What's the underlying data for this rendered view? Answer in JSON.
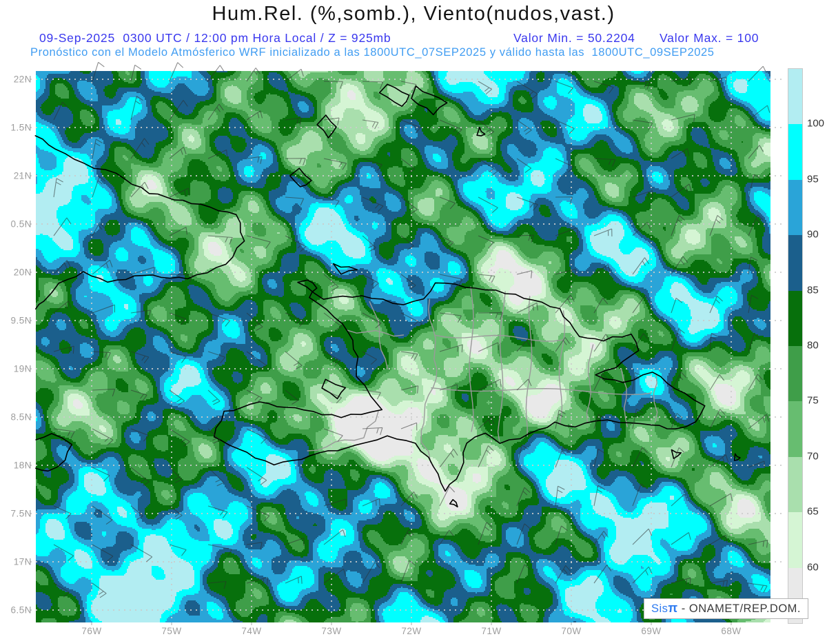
{
  "header": {
    "title": "Hum.Rel. (%,somb.), Viento(nudos,vast.)",
    "datetime_line": "09-Sep-2025  0300 UTC / 12:00 pm Hora Local / Z = 925mb",
    "valor_min": "Valor Min. = 50.2204",
    "valor_max": "Valor Max. = 100",
    "model_line": "Pronóstico con el Modelo Atmósferico WRF inicializado a las 1800UTC_07SEP2025 y válido hasta las  1800UTC_09SEP2025",
    "colors": {
      "title": "#141414",
      "datetime_line": "#3a38ee",
      "model_line": "#419df2"
    }
  },
  "axes": {
    "label_color": "#9e9e9e",
    "lat_labels": [
      {
        "text": "22N",
        "lat": 22.0
      },
      {
        "text": "1.5N",
        "lat": 21.5
      },
      {
        "text": "21N",
        "lat": 21.0
      },
      {
        "text": "0.5N",
        "lat": 20.5
      },
      {
        "text": "20N",
        "lat": 20.0
      },
      {
        "text": "9.5N",
        "lat": 19.5
      },
      {
        "text": "19N",
        "lat": 19.0
      },
      {
        "text": "8.5N",
        "lat": 18.5
      },
      {
        "text": "18N",
        "lat": 18.0
      },
      {
        "text": "7.5N",
        "lat": 17.5
      },
      {
        "text": "17N",
        "lat": 17.0
      },
      {
        "text": "6.5N",
        "lat": 16.5
      }
    ],
    "lon_labels": [
      {
        "text": "76W",
        "lon": 76
      },
      {
        "text": "75W",
        "lon": 75
      },
      {
        "text": "74W",
        "lon": 74
      },
      {
        "text": "73W",
        "lon": 73
      },
      {
        "text": "72W",
        "lon": 72
      },
      {
        "text": "71W",
        "lon": 71
      },
      {
        "text": "70W",
        "lon": 70
      },
      {
        "text": "69W",
        "lon": 69
      },
      {
        "text": "68W",
        "lon": 68
      }
    ]
  },
  "colorbar": {
    "label_color": "#333333",
    "segments_top_to_bottom": [
      {
        "color": "#b2edf2",
        "boundary_label_below": "100"
      },
      {
        "color": "#00ffff",
        "boundary_label_below": "95"
      },
      {
        "color": "#2aa4d8",
        "boundary_label_below": "90"
      },
      {
        "color": "#1b5f8c",
        "boundary_label_below": "85"
      },
      {
        "color": "#07700c",
        "boundary_label_below": "80"
      },
      {
        "color": "#3f9e49",
        "boundary_label_below": "75"
      },
      {
        "color": "#67bd70",
        "boundary_label_below": "70"
      },
      {
        "color": "#a9dfad",
        "boundary_label_below": "65"
      },
      {
        "color": "#d5f5d4",
        "boundary_label_below": "60"
      },
      {
        "color": "#e9e9e9",
        "boundary_label_below": ""
      }
    ]
  },
  "map": {
    "extent": {
      "lon_west": 76.7,
      "lon_east": 67.5,
      "lat_south": 16.37,
      "lat_north": 22.09
    },
    "levels": [
      60,
      65,
      70,
      75,
      80,
      85,
      90,
      95,
      100
    ],
    "grid": {
      "lat_step": 0.5,
      "lon_step": 1.0,
      "color": "#cccccc"
    },
    "coastline_color": "#000000",
    "border_color": "#9a9a9a",
    "barb_color": "#2e2e2e",
    "coastlines": [
      {
        "name": "hispaniola",
        "closed": true,
        "pts": [
          [
            19.9,
            73.42
          ],
          [
            19.73,
            73.1
          ],
          [
            19.76,
            72.62
          ],
          [
            19.66,
            72.1
          ],
          [
            19.72,
            71.84
          ],
          [
            19.9,
            71.7
          ],
          [
            19.84,
            71.2
          ],
          [
            19.77,
            70.7
          ],
          [
            19.62,
            70.15
          ],
          [
            19.33,
            69.9
          ],
          [
            19.3,
            69.6
          ],
          [
            19.36,
            69.25
          ],
          [
            19.19,
            69.16
          ],
          [
            19.02,
            69.45
          ],
          [
            18.93,
            69.7
          ],
          [
            18.85,
            69.35
          ],
          [
            18.97,
            68.98
          ],
          [
            18.8,
            68.7
          ],
          [
            18.62,
            68.34
          ],
          [
            18.44,
            68.44
          ],
          [
            18.37,
            68.7
          ],
          [
            18.42,
            69.0
          ],
          [
            18.45,
            69.4
          ],
          [
            18.47,
            69.7
          ],
          [
            18.4,
            69.95
          ],
          [
            18.44,
            70.2
          ],
          [
            18.32,
            70.52
          ],
          [
            18.22,
            70.9
          ],
          [
            18.34,
            71.08
          ],
          [
            18.23,
            71.32
          ],
          [
            17.93,
            71.38
          ],
          [
            17.73,
            71.58
          ],
          [
            18.0,
            71.72
          ],
          [
            18.23,
            71.95
          ],
          [
            18.3,
            72.3
          ],
          [
            18.2,
            72.7
          ],
          [
            18.12,
            73.15
          ],
          [
            18.0,
            73.72
          ],
          [
            18.17,
            74.18
          ],
          [
            18.3,
            74.48
          ],
          [
            18.55,
            74.34
          ],
          [
            18.65,
            73.9
          ],
          [
            18.57,
            73.35
          ],
          [
            18.5,
            72.88
          ],
          [
            18.57,
            72.38
          ],
          [
            18.72,
            72.5
          ],
          [
            18.92,
            72.68
          ],
          [
            19.12,
            72.68
          ],
          [
            19.38,
            72.78
          ],
          [
            19.62,
            73.05
          ],
          [
            19.74,
            73.28
          ],
          [
            19.84,
            73.18
          ],
          [
            19.92,
            73.3
          ]
        ]
      },
      {
        "name": "cuba-southeast",
        "closed": false,
        "pts": [
          [
            21.42,
            76.7
          ],
          [
            21.28,
            76.45
          ],
          [
            21.12,
            76.1
          ],
          [
            21.02,
            75.7
          ],
          [
            20.82,
            75.28
          ],
          [
            20.72,
            74.75
          ],
          [
            20.6,
            74.18
          ],
          [
            20.33,
            74.1
          ],
          [
            20.08,
            74.32
          ],
          [
            19.93,
            74.8
          ],
          [
            19.97,
            75.35
          ],
          [
            19.9,
            75.8
          ],
          [
            20.0,
            76.1
          ],
          [
            19.88,
            76.4
          ],
          [
            19.7,
            76.6
          ],
          [
            19.62,
            76.7
          ]
        ]
      },
      {
        "name": "jamaica-east",
        "closed": false,
        "pts": [
          [
            18.27,
            76.7
          ],
          [
            18.33,
            76.5
          ],
          [
            18.22,
            76.26
          ],
          [
            18.05,
            76.33
          ],
          [
            17.93,
            76.55
          ],
          [
            17.97,
            76.7
          ]
        ]
      },
      {
        "name": "gonave",
        "closed": true,
        "pts": [
          [
            18.88,
            73.08
          ],
          [
            18.8,
            72.82
          ],
          [
            18.7,
            72.92
          ],
          [
            18.8,
            73.12
          ]
        ]
      },
      {
        "name": "tortuga",
        "closed": true,
        "pts": [
          [
            20.08,
            72.98
          ],
          [
            20.03,
            72.68
          ],
          [
            19.98,
            72.88
          ]
        ]
      },
      {
        "name": "little-inagua",
        "closed": true,
        "pts": [
          [
            21.62,
            73.08
          ],
          [
            21.5,
            72.93
          ],
          [
            21.4,
            73.03
          ],
          [
            21.53,
            73.18
          ]
        ]
      },
      {
        "name": "great-inagua",
        "closed": true,
        "pts": [
          [
            21.08,
            73.4
          ],
          [
            20.95,
            73.25
          ],
          [
            20.88,
            73.4
          ],
          [
            21.0,
            73.52
          ]
        ]
      },
      {
        "name": "caicos-west",
        "closed": true,
        "pts": [
          [
            21.95,
            72.3
          ],
          [
            21.83,
            72.02
          ],
          [
            21.72,
            72.12
          ],
          [
            21.86,
            72.4
          ]
        ]
      },
      {
        "name": "caicos-east",
        "closed": true,
        "pts": [
          [
            21.92,
            71.95
          ],
          [
            21.76,
            71.56
          ],
          [
            21.64,
            71.72
          ],
          [
            21.8,
            72.0
          ]
        ]
      },
      {
        "name": "turks",
        "closed": true,
        "pts": [
          [
            21.5,
            71.15
          ],
          [
            21.43,
            71.08
          ],
          [
            21.42,
            71.18
          ]
        ]
      },
      {
        "name": "saona",
        "closed": true,
        "pts": [
          [
            18.15,
            68.75
          ],
          [
            18.12,
            68.62
          ],
          [
            18.07,
            68.72
          ]
        ]
      },
      {
        "name": "beata",
        "closed": true,
        "pts": [
          [
            17.65,
            71.47
          ],
          [
            17.58,
            71.42
          ],
          [
            17.6,
            71.52
          ]
        ]
      },
      {
        "name": "mona",
        "closed": true,
        "pts": [
          [
            18.12,
            67.95
          ],
          [
            18.08,
            67.89
          ],
          [
            18.05,
            67.96
          ]
        ]
      }
    ],
    "borders": [
      [
        [
          19.72,
          71.78
        ],
        [
          19.0,
          71.68
        ],
        [
          18.35,
          71.9
        ],
        [
          18.03,
          71.76
        ]
      ],
      [
        [
          19.85,
          71.25
        ],
        [
          18.35,
          71.25
        ]
      ],
      [
        [
          19.8,
          70.85
        ],
        [
          18.25,
          70.9
        ]
      ],
      [
        [
          19.75,
          70.5
        ],
        [
          18.3,
          70.55
        ]
      ],
      [
        [
          19.6,
          70.1
        ],
        [
          18.42,
          70.15
        ]
      ],
      [
        [
          19.25,
          69.75
        ],
        [
          18.45,
          69.8
        ]
      ],
      [
        [
          19.0,
          69.35
        ],
        [
          18.4,
          69.3
        ]
      ],
      [
        [
          18.95,
          68.95
        ],
        [
          18.45,
          68.95
        ]
      ],
      [
        [
          19.35,
          71.7
        ],
        [
          19.3,
          70.1
        ]
      ],
      [
        [
          18.8,
          71.75
        ],
        [
          18.75,
          69.0
        ]
      ],
      [
        [
          19.4,
          72.8
        ],
        [
          19.35,
          72.1
        ]
      ],
      [
        [
          18.55,
          72.4
        ],
        [
          18.3,
          72.6
        ],
        [
          18.15,
          73.3
        ]
      ],
      [
        [
          19.7,
          72.5
        ],
        [
          19.0,
          72.3
        ]
      ]
    ]
  },
  "watermark": {
    "brand": "Sis",
    "pi": "π",
    "rest": " - ONAMET/REP.DOM."
  }
}
